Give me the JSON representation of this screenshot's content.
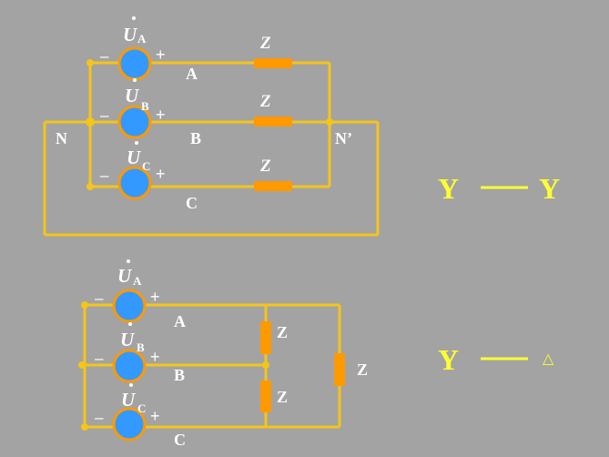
{
  "colors": {
    "background": "#A3A3A3",
    "wire": "#F5C518",
    "impedance": "#FF9900",
    "source_fill": "#3399FF",
    "source_ring": "#FF9900",
    "text": "#FFFFFF",
    "connection_label": "#FFFF33"
  },
  "top_circuit": {
    "sources": [
      {
        "symbol": "U",
        "subscript": "A",
        "minus": "–",
        "plus": "+",
        "line": "A"
      },
      {
        "symbol": "U",
        "subscript": "B",
        "minus": "–",
        "plus": "+",
        "line": "B"
      },
      {
        "symbol": "U",
        "subscript": "C",
        "minus": "–",
        "plus": "+",
        "line": "C"
      }
    ],
    "impedances": [
      "Z",
      "Z",
      "Z"
    ],
    "neutral_source": "N",
    "neutral_load": "N’",
    "connection_left": "Y",
    "connection_right": "Y"
  },
  "bottom_circuit": {
    "sources": [
      {
        "symbol": "U",
        "subscript": "A",
        "minus": "–",
        "plus": "+",
        "line": "A"
      },
      {
        "symbol": "U",
        "subscript": "B",
        "minus": "–",
        "plus": "+",
        "line": "B"
      },
      {
        "symbol": "U",
        "subscript": "C",
        "minus": "–",
        "plus": "+",
        "line": "C"
      }
    ],
    "impedances": [
      "Z",
      "Z",
      "Z"
    ],
    "connection_left": "Y",
    "connection_right": "△"
  }
}
